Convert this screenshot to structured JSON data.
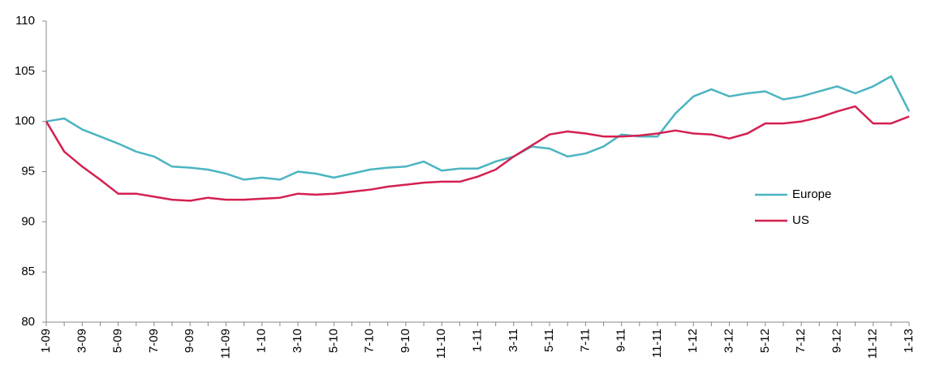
{
  "chart_data": {
    "type": "line",
    "categories": [
      "1-09",
      null,
      "3-09",
      null,
      "5-09",
      null,
      "7-09",
      null,
      "9-09",
      null,
      "11-09",
      null,
      "1-10",
      null,
      "3-10",
      null,
      "5-10",
      null,
      "7-10",
      null,
      "9-10",
      null,
      "11-10",
      null,
      "1-11",
      null,
      "3-11",
      null,
      "5-11",
      null,
      "7-11",
      null,
      "9-11",
      null,
      "11-11",
      null,
      "1-12",
      null,
      "3-12",
      null,
      "5-12",
      null,
      "7-12",
      null,
      "9-12",
      null,
      "11-12",
      null,
      "1-13"
    ],
    "series": [
      {
        "name": "Europe",
        "color": "#4bb5c1",
        "values": [
          100,
          100.3,
          99.2,
          98.5,
          97.8,
          97,
          96.5,
          95.5,
          95.4,
          95.2,
          94.8,
          94.2,
          94.4,
          94.2,
          95,
          94.8,
          94.4,
          94.8,
          95.2,
          95.4,
          95.5,
          96,
          95.1,
          95.3,
          95.3,
          96,
          96.5,
          97.5,
          97.3,
          96.5,
          96.8,
          97.5,
          98.7,
          98.5,
          98.5,
          100.8,
          102.5,
          103.2,
          102.5,
          102.8,
          103,
          102.2,
          102.5,
          103,
          103.5,
          102.8,
          103.5,
          104.5,
          101
        ]
      },
      {
        "name": "US",
        "color": "#d4204f",
        "values": [
          100,
          97,
          95.5,
          94.2,
          92.8,
          92.8,
          92.5,
          92.2,
          92.1,
          92.4,
          92.2,
          92.2,
          92.3,
          92.4,
          92.8,
          92.7,
          92.8,
          93,
          93.2,
          93.5,
          93.7,
          93.9,
          94,
          94,
          94.5,
          95.2,
          96.5,
          97.6,
          98.7,
          99,
          98.8,
          98.5,
          98.5,
          98.6,
          98.8,
          99.1,
          98.8,
          98.7,
          98.3,
          98.8,
          99.8,
          99.8,
          100,
          100.4,
          101,
          101.5,
          99.8,
          99.8,
          100.5
        ]
      }
    ],
    "ylim": [
      80,
      110
    ],
    "yticks": [
      80,
      85,
      90,
      95,
      100,
      105,
      110
    ],
    "grid": false,
    "legend": "right"
  }
}
